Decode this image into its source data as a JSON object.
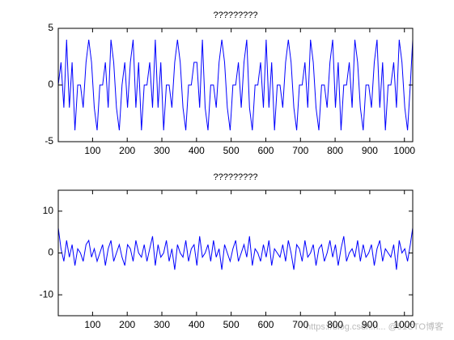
{
  "chart_data": [
    {
      "type": "line",
      "title": "?????????",
      "color": "#0000ff",
      "x": [
        1,
        9,
        17,
        25,
        33,
        41,
        49,
        57,
        65,
        73,
        81,
        89,
        97,
        105,
        113,
        121,
        129,
        137,
        145,
        153,
        161,
        169,
        177,
        185,
        193,
        201,
        209,
        217,
        225,
        233,
        241,
        249,
        257,
        265,
        273,
        281,
        289,
        297,
        305,
        313,
        321,
        329,
        337,
        345,
        353,
        361,
        369,
        377,
        385,
        393,
        401,
        409,
        417,
        425,
        433,
        441,
        449,
        457,
        465,
        473,
        481,
        489,
        497,
        505,
        513,
        521,
        529,
        537,
        545,
        553,
        561,
        569,
        577,
        585,
        593,
        601,
        609,
        617,
        625,
        633,
        641,
        649,
        657,
        665,
        673,
        681,
        689,
        697,
        705,
        713,
        721,
        729,
        737,
        745,
        753,
        761,
        769,
        777,
        785,
        793,
        801,
        809,
        817,
        825,
        833,
        841,
        849,
        857,
        865,
        873,
        881,
        889,
        897,
        905,
        913,
        921,
        929,
        937,
        945,
        953,
        961,
        969,
        977,
        985,
        993,
        1001,
        1009,
        1017,
        1024
      ],
      "values": [
        0,
        2,
        -2,
        4,
        -2,
        2,
        -4,
        0,
        0,
        -2,
        2,
        4,
        2,
        -2,
        -4,
        0,
        0,
        2,
        -2,
        4,
        2,
        -2,
        -4,
        0,
        2,
        -2,
        2,
        4,
        -2,
        2,
        -4,
        0,
        0,
        2,
        -2,
        4,
        -2,
        2,
        -4,
        0,
        0,
        -2,
        2,
        4,
        2,
        -2,
        -4,
        0,
        0,
        2,
        2,
        -2,
        4,
        -2,
        -4,
        0,
        0,
        -2,
        2,
        4,
        2,
        -2,
        -4,
        0,
        0,
        2,
        -2,
        2,
        4,
        -2,
        -4,
        0,
        0,
        2,
        -2,
        4,
        -2,
        2,
        -4,
        0,
        0,
        -2,
        2,
        4,
        2,
        -2,
        -4,
        0,
        0,
        2,
        -2,
        4,
        2,
        -2,
        -4,
        0,
        0,
        -2,
        2,
        4,
        -2,
        2,
        -4,
        0,
        0,
        2,
        -2,
        4,
        2,
        -2,
        -4,
        0,
        0,
        -2,
        2,
        4,
        -2,
        2,
        -4,
        0,
        0,
        2,
        -2,
        4,
        2,
        -2,
        -4,
        0,
        4
      ],
      "xlim": [
        1,
        1024
      ],
      "xticks": [
        100,
        200,
        300,
        400,
        500,
        600,
        700,
        800,
        900,
        1000
      ],
      "ylim": [
        -5,
        5
      ],
      "yticks": [
        -5,
        0,
        5
      ]
    },
    {
      "type": "line",
      "title": "?????????",
      "color": "#0000ff",
      "x": [
        1,
        9,
        17,
        25,
        33,
        41,
        49,
        57,
        65,
        73,
        81,
        89,
        97,
        105,
        113,
        121,
        129,
        137,
        145,
        153,
        161,
        169,
        177,
        185,
        193,
        201,
        209,
        217,
        225,
        233,
        241,
        249,
        257,
        265,
        273,
        281,
        289,
        297,
        305,
        313,
        321,
        329,
        337,
        345,
        353,
        361,
        369,
        377,
        385,
        393,
        401,
        409,
        417,
        425,
        433,
        441,
        449,
        457,
        465,
        473,
        481,
        489,
        497,
        505,
        513,
        521,
        529,
        537,
        545,
        553,
        561,
        569,
        577,
        585,
        593,
        601,
        609,
        617,
        625,
        633,
        641,
        649,
        657,
        665,
        673,
        681,
        689,
        697,
        705,
        713,
        721,
        729,
        737,
        745,
        753,
        761,
        769,
        777,
        785,
        793,
        801,
        809,
        817,
        825,
        833,
        841,
        849,
        857,
        865,
        873,
        881,
        889,
        897,
        905,
        913,
        921,
        929,
        937,
        945,
        953,
        961,
        969,
        977,
        985,
        993,
        1001,
        1009,
        1017,
        1024
      ],
      "values": [
        6,
        1,
        -2,
        3,
        -1,
        2,
        -3,
        1,
        0,
        -2,
        2,
        3,
        -1,
        1,
        -2,
        0,
        2,
        -3,
        1,
        3,
        -2,
        0,
        2,
        -1,
        -3,
        2,
        1,
        -2,
        3,
        0,
        -1,
        2,
        -2,
        1,
        4,
        -3,
        2,
        -1,
        0,
        3,
        -2,
        1,
        -4,
        2,
        0,
        -1,
        3,
        -2,
        1,
        2,
        -3,
        4,
        -1,
        0,
        2,
        -2,
        3,
        -1,
        1,
        -4,
        2,
        0,
        -2,
        1,
        3,
        -2,
        0,
        2,
        -1,
        4,
        -3,
        1,
        0,
        -2,
        2,
        -1,
        3,
        -3,
        1,
        0,
        -1,
        2,
        -2,
        3,
        0,
        -4,
        2,
        1,
        -2,
        3,
        -1,
        0,
        2,
        -3,
        1,
        2,
        -2,
        0,
        3,
        -1,
        2,
        -3,
        1,
        4,
        -2,
        0,
        1,
        -1,
        3,
        -2,
        2,
        -1,
        0,
        2,
        -3,
        1,
        3,
        -2,
        1,
        0,
        -1,
        2,
        -4,
        3,
        0,
        1,
        -2,
        2,
        6
      ],
      "xlim": [
        1,
        1024
      ],
      "xticks": [
        100,
        200,
        300,
        400,
        500,
        600,
        700,
        800,
        900,
        1000
      ],
      "ylim": [
        -15,
        15
      ],
      "yticks": [
        -10,
        0,
        10
      ]
    }
  ],
  "watermark": "https://blog.csdn.n... @51CTO博客"
}
